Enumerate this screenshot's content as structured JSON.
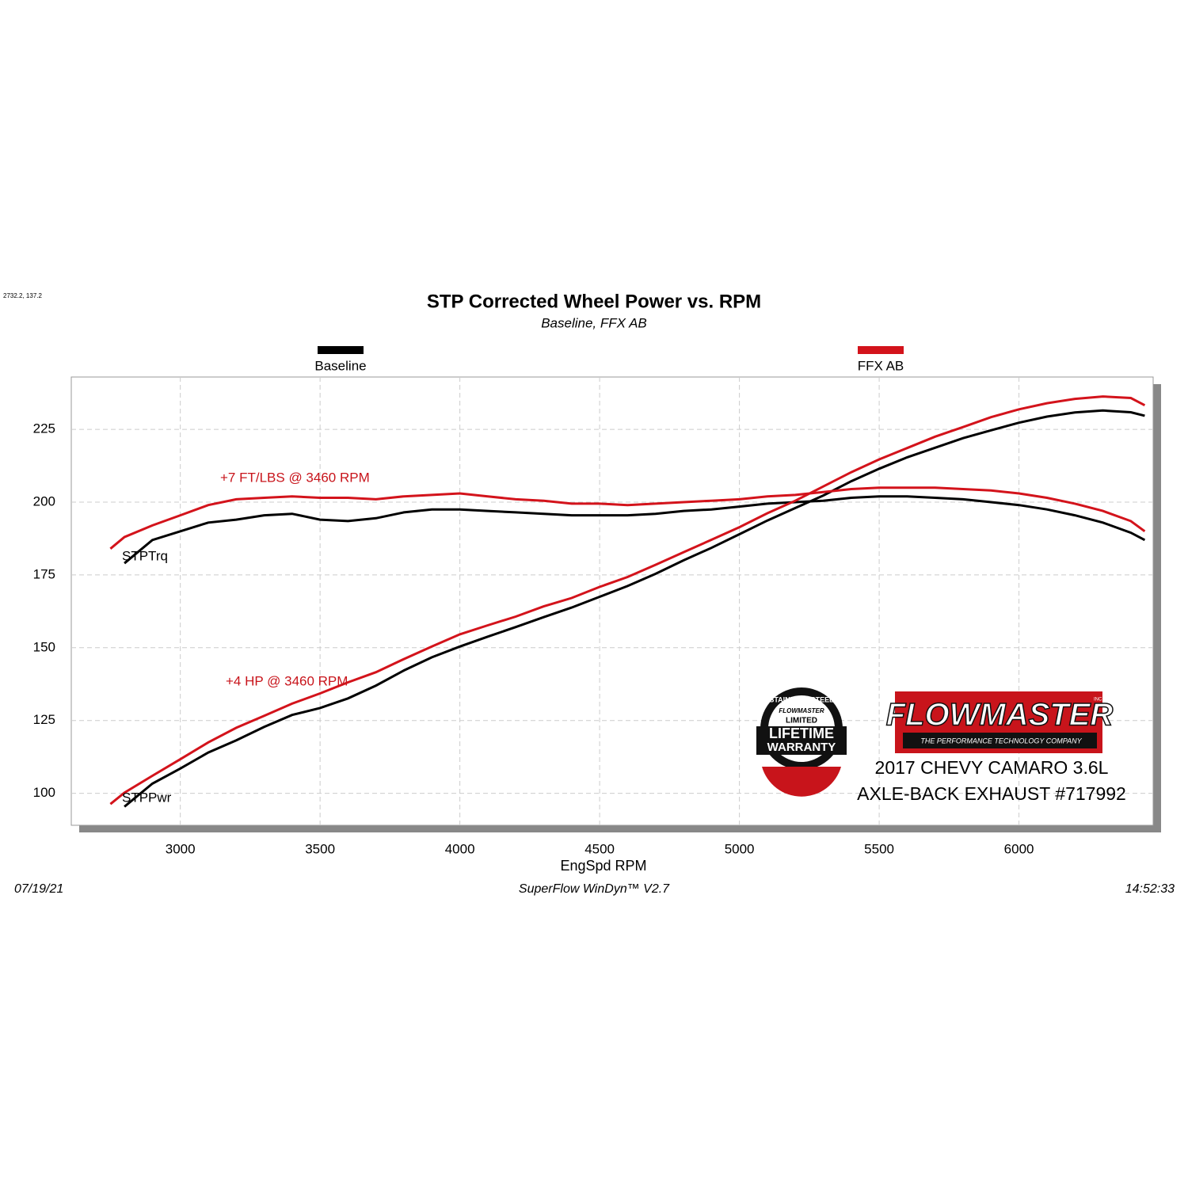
{
  "chart_data": {
    "type": "line",
    "corner_note": "2732.2, 137.2",
    "title": "STP Corrected Wheel Power vs. RPM",
    "subtitle": "Baseline, FFX AB",
    "x_label": "EngSpd  RPM",
    "footer": {
      "date": "07/19/21",
      "software": "SuperFlow WinDyn™  V2.7",
      "time": "14:52:33"
    },
    "annotations": [
      "+7 FT/LBS @ 3460 RPM",
      "+4 HP @ 3460 RPM"
    ],
    "curve_labels": [
      "STPTrq",
      "STPPwr"
    ],
    "caption": [
      "2017 CHEVY CAMARO 3.6L",
      "AXLE-BACK EXHAUST #717992"
    ],
    "x": [
      2750,
      2800,
      2900,
      3000,
      3100,
      3200,
      3300,
      3400,
      3500,
      3600,
      3700,
      3800,
      3900,
      4000,
      4100,
      4200,
      4300,
      4400,
      4500,
      4600,
      4700,
      4800,
      4900,
      5000,
      5100,
      5200,
      5300,
      5400,
      5500,
      5600,
      5700,
      5800,
      5900,
      6000,
      6100,
      6200,
      6300,
      6400,
      6450
    ],
    "series": [
      {
        "name": "Baseline",
        "color": "#000000",
        "torque": [
          null,
          179,
          187,
          190,
          193,
          194,
          195.5,
          196,
          194,
          193.5,
          194.5,
          196.5,
          197.5,
          197.5,
          197,
          196.5,
          196,
          195.5,
          195.5,
          195.5,
          196,
          197,
          197.5,
          198.5,
          199.5,
          200,
          200.5,
          201.5,
          202,
          202,
          201.5,
          201,
          200,
          199,
          197.5,
          195.5,
          193,
          189.5,
          187
        ],
        "power": [
          null,
          95.4,
          103.3,
          108.5,
          114.0,
          118.2,
          122.8,
          126.9,
          129.3,
          132.6,
          137.0,
          142.2,
          146.7,
          150.4,
          153.8,
          157.1,
          160.5,
          163.8,
          167.5,
          171.2,
          175.4,
          180.0,
          184.3,
          189.0,
          193.7,
          198.0,
          202.3,
          207.2,
          211.5,
          215.4,
          218.7,
          222.0,
          224.7,
          227.3,
          229.4,
          230.8,
          231.5,
          230.9,
          229.7
        ]
      },
      {
        "name": "FFX AB",
        "color": "#d3131b",
        "torque": [
          184,
          188,
          192,
          195.5,
          199,
          201,
          201.5,
          202,
          201.5,
          201.5,
          201,
          202,
          202.5,
          203,
          202,
          201,
          200.5,
          199.5,
          199.5,
          199,
          199.5,
          200,
          200.5,
          201,
          202,
          202.5,
          203.5,
          204.5,
          205,
          205,
          205,
          204.5,
          204,
          203,
          201.5,
          199.5,
          197,
          193.5,
          190
        ],
        "power": [
          96.3,
          100.2,
          106.0,
          111.7,
          117.5,
          122.5,
          126.6,
          130.8,
          134.3,
          138.1,
          141.6,
          146.1,
          150.4,
          154.6,
          157.7,
          160.7,
          164.2,
          167.1,
          170.9,
          174.3,
          178.5,
          182.8,
          187.1,
          191.4,
          196.2,
          200.5,
          205.4,
          210.3,
          214.7,
          218.6,
          222.5,
          225.8,
          229.2,
          231.9,
          234.0,
          235.5,
          236.3,
          235.8,
          233.3
        ]
      }
    ],
    "xlim": [
      2610,
      6480
    ],
    "xticks": [
      3000,
      3500,
      4000,
      4500,
      5000,
      5500,
      6000
    ],
    "ylim": [
      89,
      243
    ],
    "yticks": [
      100,
      125,
      150,
      175,
      200,
      225
    ],
    "grid": true
  },
  "logo": {
    "brand": "FLOWMASTER",
    "suffix": "INC.",
    "tagline": "THE PERFORMANCE TECHNOLOGY COMPANY"
  },
  "badge": {
    "arc": "STAINLESS STEEL",
    "brand": "FLOWMASTER",
    "line1": "LIMITED",
    "line2": "LIFETIME",
    "line3": "WARRANTY"
  }
}
